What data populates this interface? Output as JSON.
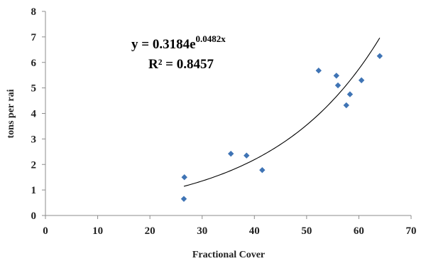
{
  "chart_data": {
    "type": "scatter",
    "title": "",
    "xlabel": "Fractional Cover",
    "ylabel": "tons per rai",
    "xlim": [
      0,
      70
    ],
    "ylim": [
      0,
      8
    ],
    "xticks": [
      "0",
      "10",
      "20",
      "30",
      "40",
      "50",
      "60",
      "70"
    ],
    "yticks": [
      "0",
      "1",
      "2",
      "3",
      "4",
      "5",
      "6",
      "7",
      "8"
    ],
    "grid": false,
    "legend": "none",
    "marker": "diamond",
    "marker_color": "#3f74b5",
    "series": [
      {
        "points": [
          {
            "x": 26.5,
            "y": 0.65
          },
          {
            "x": 26.6,
            "y": 1.5
          },
          {
            "x": 35.5,
            "y": 2.42
          },
          {
            "x": 38.5,
            "y": 2.35
          },
          {
            "x": 41.5,
            "y": 1.78
          },
          {
            "x": 52.3,
            "y": 5.68
          },
          {
            "x": 55.7,
            "y": 5.48
          },
          {
            "x": 56.0,
            "y": 5.1
          },
          {
            "x": 57.6,
            "y": 4.32
          },
          {
            "x": 58.3,
            "y": 4.75
          },
          {
            "x": 60.5,
            "y": 5.3
          },
          {
            "x": 64.0,
            "y": 6.25
          }
        ]
      }
    ],
    "trendline": {
      "type": "exponential",
      "a": 0.3184,
      "b": 0.0482,
      "x_range": [
        26.5,
        64.0
      ],
      "color": "#000000"
    },
    "annotation": {
      "equation_prefix": "y = 0.3184e",
      "equation_exponent": "0.0482x",
      "r_squared": "R² = 0.8457"
    }
  }
}
